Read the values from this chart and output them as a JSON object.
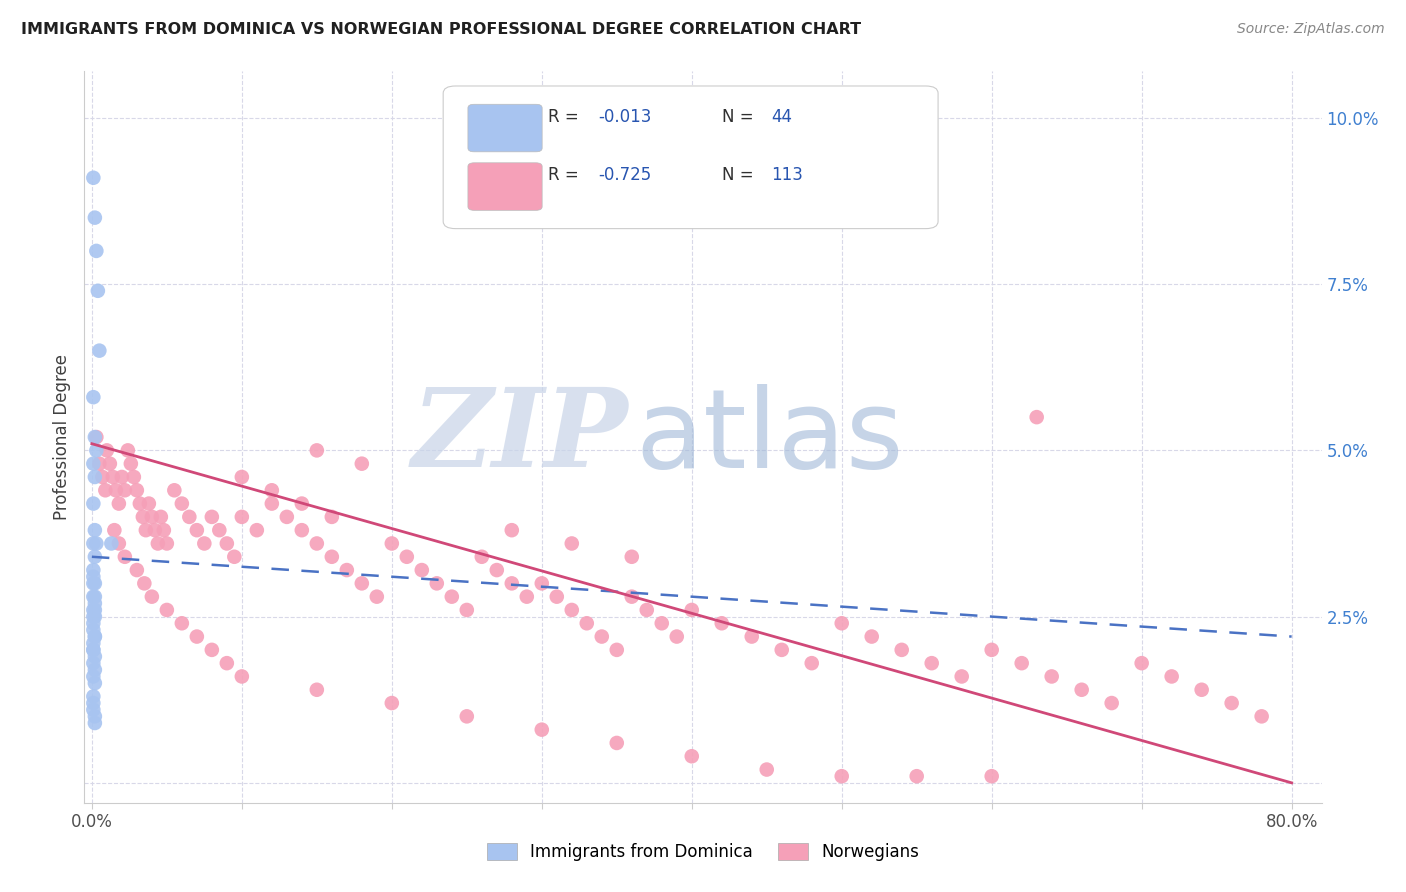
{
  "title": "IMMIGRANTS FROM DOMINICA VS NORWEGIAN PROFESSIONAL DEGREE CORRELATION CHART",
  "source": "Source: ZipAtlas.com",
  "ylabel": "Professional Degree",
  "legend_blue_label": "Immigrants from Dominica",
  "legend_pink_label": "Norwegians",
  "blue_color": "#a8c4f0",
  "pink_color": "#f5a0b8",
  "blue_line_color": "#4a72c4",
  "pink_line_color": "#d04878",
  "background_color": "#ffffff",
  "grid_color": "#d8d8e8",
  "title_color": "#202020",
  "tick_color_right": "#4080d0",
  "watermark_zip_color": "#c8d4e8",
  "watermark_atlas_color": "#a0b8d8",
  "blue_scatter_x": [
    0.001,
    0.002,
    0.003,
    0.004,
    0.005,
    0.001,
    0.002,
    0.003,
    0.001,
    0.002,
    0.001,
    0.002,
    0.001,
    0.002,
    0.001,
    0.002,
    0.001,
    0.002,
    0.001,
    0.002,
    0.001,
    0.001,
    0.002,
    0.001,
    0.001,
    0.002,
    0.001,
    0.002,
    0.001,
    0.002,
    0.001,
    0.001,
    0.001,
    0.002,
    0.001,
    0.001,
    0.002,
    0.003,
    0.013,
    0.002,
    0.001,
    0.002,
    0.001,
    0.002
  ],
  "blue_scatter_y": [
    0.091,
    0.085,
    0.08,
    0.074,
    0.065,
    0.058,
    0.052,
    0.05,
    0.048,
    0.046,
    0.042,
    0.038,
    0.036,
    0.034,
    0.032,
    0.03,
    0.028,
    0.027,
    0.026,
    0.025,
    0.024,
    0.023,
    0.022,
    0.021,
    0.02,
    0.019,
    0.018,
    0.017,
    0.016,
    0.015,
    0.013,
    0.012,
    0.011,
    0.01,
    0.031,
    0.03,
    0.028,
    0.036,
    0.036,
    0.026,
    0.025,
    0.022,
    0.02,
    0.009
  ],
  "pink_scatter_x": [
    0.003,
    0.005,
    0.007,
    0.009,
    0.01,
    0.012,
    0.014,
    0.016,
    0.018,
    0.02,
    0.022,
    0.024,
    0.026,
    0.028,
    0.03,
    0.032,
    0.034,
    0.036,
    0.038,
    0.04,
    0.042,
    0.044,
    0.046,
    0.048,
    0.05,
    0.055,
    0.06,
    0.065,
    0.07,
    0.075,
    0.08,
    0.085,
    0.09,
    0.095,
    0.1,
    0.11,
    0.12,
    0.13,
    0.14,
    0.15,
    0.16,
    0.17,
    0.18,
    0.19,
    0.2,
    0.21,
    0.22,
    0.23,
    0.24,
    0.25,
    0.26,
    0.27,
    0.28,
    0.29,
    0.3,
    0.31,
    0.32,
    0.33,
    0.34,
    0.35,
    0.36,
    0.37,
    0.38,
    0.39,
    0.4,
    0.42,
    0.44,
    0.46,
    0.48,
    0.5,
    0.52,
    0.54,
    0.56,
    0.58,
    0.6,
    0.62,
    0.64,
    0.66,
    0.68,
    0.7,
    0.72,
    0.74,
    0.76,
    0.78,
    0.015,
    0.018,
    0.022,
    0.03,
    0.035,
    0.04,
    0.05,
    0.06,
    0.07,
    0.08,
    0.09,
    0.1,
    0.15,
    0.2,
    0.25,
    0.3,
    0.35,
    0.4,
    0.45,
    0.5,
    0.55,
    0.6,
    0.63,
    0.15,
    0.18,
    0.1,
    0.12,
    0.14,
    0.16,
    0.28,
    0.32,
    0.36
  ],
  "pink_scatter_y": [
    0.052,
    0.048,
    0.046,
    0.044,
    0.05,
    0.048,
    0.046,
    0.044,
    0.042,
    0.046,
    0.044,
    0.05,
    0.048,
    0.046,
    0.044,
    0.042,
    0.04,
    0.038,
    0.042,
    0.04,
    0.038,
    0.036,
    0.04,
    0.038,
    0.036,
    0.044,
    0.042,
    0.04,
    0.038,
    0.036,
    0.04,
    0.038,
    0.036,
    0.034,
    0.04,
    0.038,
    0.042,
    0.04,
    0.038,
    0.036,
    0.034,
    0.032,
    0.03,
    0.028,
    0.036,
    0.034,
    0.032,
    0.03,
    0.028,
    0.026,
    0.034,
    0.032,
    0.03,
    0.028,
    0.03,
    0.028,
    0.026,
    0.024,
    0.022,
    0.02,
    0.028,
    0.026,
    0.024,
    0.022,
    0.026,
    0.024,
    0.022,
    0.02,
    0.018,
    0.024,
    0.022,
    0.02,
    0.018,
    0.016,
    0.02,
    0.018,
    0.016,
    0.014,
    0.012,
    0.018,
    0.016,
    0.014,
    0.012,
    0.01,
    0.038,
    0.036,
    0.034,
    0.032,
    0.03,
    0.028,
    0.026,
    0.024,
    0.022,
    0.02,
    0.018,
    0.016,
    0.014,
    0.012,
    0.01,
    0.008,
    0.006,
    0.004,
    0.002,
    0.001,
    0.001,
    0.001,
    0.055,
    0.05,
    0.048,
    0.046,
    0.044,
    0.042,
    0.04,
    0.038,
    0.036,
    0.034
  ],
  "xlim": [
    0.0,
    0.8
  ],
  "ylim": [
    0.0,
    0.1
  ],
  "blue_line_x": [
    0.0,
    0.8
  ],
  "blue_line_y": [
    0.034,
    0.022
  ],
  "pink_line_x": [
    0.0,
    0.8
  ],
  "pink_line_y": [
    0.051,
    0.0
  ]
}
